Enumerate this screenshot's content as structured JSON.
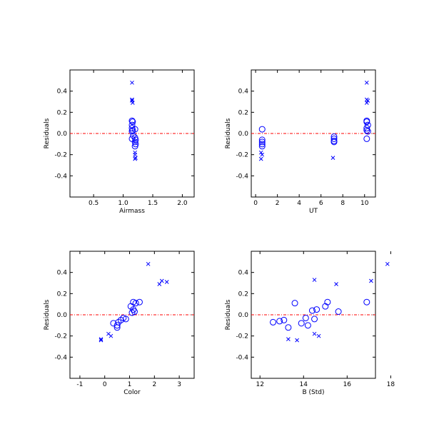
{
  "colors": {
    "marker": "#0000ff",
    "zero_line": "#ff0000",
    "axes": "#000000"
  },
  "chart_data": [
    {
      "type": "scatter",
      "xlabel": "Airmass",
      "ylabel": "Residuals",
      "xlim": [
        0.1,
        2.2
      ],
      "ylim": [
        -0.6,
        0.6
      ],
      "xticks": [
        0.5,
        1.0,
        1.5,
        2.0
      ],
      "xtick_labels": [
        "0.5",
        "1.0",
        "1.5",
        "2.0"
      ],
      "yticks": [
        -0.4,
        -0.2,
        0.0,
        0.2,
        0.4
      ],
      "ytick_labels": [
        "-0.4",
        "-0.2",
        "0.0",
        "0.2",
        "0.4"
      ],
      "zero_line": 0,
      "series": [
        {
          "marker": "x",
          "points": [
            [
              1.15,
              0.48
            ],
            [
              1.15,
              0.32
            ],
            [
              1.15,
              0.31
            ],
            [
              1.16,
              0.29
            ],
            [
              1.2,
              -0.18
            ],
            [
              1.2,
              -0.2
            ],
            [
              1.21,
              -0.23
            ],
            [
              1.2,
              -0.24
            ]
          ]
        },
        {
          "marker": "o",
          "points": [
            [
              1.15,
              0.12
            ],
            [
              1.16,
              0.11
            ],
            [
              1.15,
              0.08
            ],
            [
              1.15,
              0.05
            ],
            [
              1.16,
              0.03
            ],
            [
              1.15,
              0.02
            ],
            [
              1.2,
              0.04
            ],
            [
              1.17,
              -0.02
            ],
            [
              1.15,
              -0.05
            ],
            [
              1.2,
              -0.04
            ],
            [
              1.21,
              -0.06
            ],
            [
              1.2,
              -0.08
            ],
            [
              1.21,
              -0.1
            ],
            [
              1.2,
              -0.12
            ]
          ]
        }
      ]
    },
    {
      "type": "scatter",
      "xlabel": "UT",
      "ylabel": "Residuals",
      "xlim": [
        -0.4,
        11
      ],
      "ylim": [
        -0.6,
        0.6
      ],
      "xticks": [
        0,
        2,
        4,
        6,
        8,
        10
      ],
      "xtick_labels": [
        "0",
        "2",
        "4",
        "6",
        "8",
        "10"
      ],
      "yticks": [
        -0.4,
        -0.2,
        0.0,
        0.2,
        0.4
      ],
      "ytick_labels": [
        "-0.4",
        "-0.2",
        "0.0",
        "0.2",
        "0.4"
      ],
      "zero_line": 0,
      "series": [
        {
          "marker": "x",
          "points": [
            [
              10.2,
              0.48
            ],
            [
              10.2,
              0.32
            ],
            [
              10.3,
              0.31
            ],
            [
              10.2,
              0.29
            ],
            [
              0.5,
              -0.18
            ],
            [
              0.6,
              -0.2
            ],
            [
              0.5,
              -0.24
            ],
            [
              7.1,
              -0.23
            ]
          ]
        },
        {
          "marker": "o",
          "points": [
            [
              0.6,
              0.04
            ],
            [
              0.6,
              -0.06
            ],
            [
              0.6,
              -0.08
            ],
            [
              0.6,
              -0.1
            ],
            [
              0.6,
              -0.12
            ],
            [
              7.2,
              -0.03
            ],
            [
              7.2,
              -0.05
            ],
            [
              7.2,
              -0.07
            ],
            [
              7.2,
              -0.08
            ],
            [
              10.2,
              0.12
            ],
            [
              10.2,
              0.11
            ],
            [
              10.3,
              0.08
            ],
            [
              10.2,
              0.05
            ],
            [
              10.2,
              0.03
            ],
            [
              10.3,
              0.02
            ],
            [
              10.2,
              -0.05
            ]
          ]
        }
      ]
    },
    {
      "type": "scatter",
      "xlabel": "Color",
      "ylabel": "Residuals",
      "xlim": [
        -1.4,
        3.6
      ],
      "ylim": [
        -0.6,
        0.6
      ],
      "xticks": [
        -1,
        0,
        1,
        2,
        3
      ],
      "xtick_labels": [
        "-1",
        "0",
        "1",
        "2",
        "3"
      ],
      "yticks": [
        -0.4,
        -0.2,
        0.0,
        0.2,
        0.4
      ],
      "ytick_labels": [
        "-0.4",
        "-0.2",
        "0.0",
        "0.2",
        "0.4"
      ],
      "zero_line": 0,
      "series": [
        {
          "marker": "x",
          "points": [
            [
              1.75,
              0.48
            ],
            [
              2.3,
              0.32
            ],
            [
              2.5,
              0.31
            ],
            [
              2.2,
              0.29
            ],
            [
              0.15,
              -0.18
            ],
            [
              0.25,
              -0.2
            ],
            [
              -0.15,
              -0.23
            ],
            [
              -0.15,
              -0.24
            ]
          ]
        },
        {
          "marker": "o",
          "points": [
            [
              1.15,
              0.12
            ],
            [
              1.25,
              0.11
            ],
            [
              1.4,
              0.12
            ],
            [
              1.05,
              0.08
            ],
            [
              1.15,
              0.05
            ],
            [
              1.2,
              0.03
            ],
            [
              1.1,
              0.02
            ],
            [
              0.75,
              -0.03
            ],
            [
              0.85,
              -0.04
            ],
            [
              0.65,
              -0.05
            ],
            [
              0.55,
              -0.07
            ],
            [
              0.35,
              -0.08
            ],
            [
              0.5,
              -0.1
            ],
            [
              0.5,
              -0.12
            ]
          ]
        }
      ]
    },
    {
      "type": "scatter",
      "xlabel": "B (Std)",
      "ylabel": "Residuals",
      "xlim": [
        11.6,
        17.3
      ],
      "ylim": [
        -0.6,
        0.6
      ],
      "xticks": [
        12,
        14,
        16,
        18
      ],
      "xtick_labels": [
        "12",
        "14",
        "16",
        "18"
      ],
      "yticks": [
        -0.4,
        -0.2,
        0.0,
        0.2,
        0.4
      ],
      "ytick_labels": [
        "-0.4",
        "-0.2",
        "0.0",
        "0.2",
        "0.4"
      ],
      "zero_line": 0,
      "series": [
        {
          "marker": "x",
          "points": [
            [
              17.85,
              0.48
            ],
            [
              17.1,
              0.32
            ],
            [
              14.5,
              0.33
            ],
            [
              15.5,
              0.29
            ],
            [
              14.5,
              -0.18
            ],
            [
              14.7,
              -0.2
            ],
            [
              13.3,
              -0.23
            ],
            [
              13.7,
              -0.24
            ]
          ]
        },
        {
          "marker": "o",
          "points": [
            [
              13.6,
              0.11
            ],
            [
              15.1,
              0.12
            ],
            [
              16.9,
              0.12
            ],
            [
              15.0,
              0.08
            ],
            [
              14.6,
              0.05
            ],
            [
              14.4,
              0.04
            ],
            [
              15.6,
              0.03
            ],
            [
              14.1,
              -0.03
            ],
            [
              13.1,
              -0.05
            ],
            [
              12.6,
              -0.07
            ],
            [
              12.9,
              -0.06
            ],
            [
              14.5,
              -0.04
            ],
            [
              13.9,
              -0.08
            ],
            [
              14.2,
              -0.1
            ],
            [
              13.3,
              -0.12
            ]
          ]
        }
      ]
    }
  ]
}
